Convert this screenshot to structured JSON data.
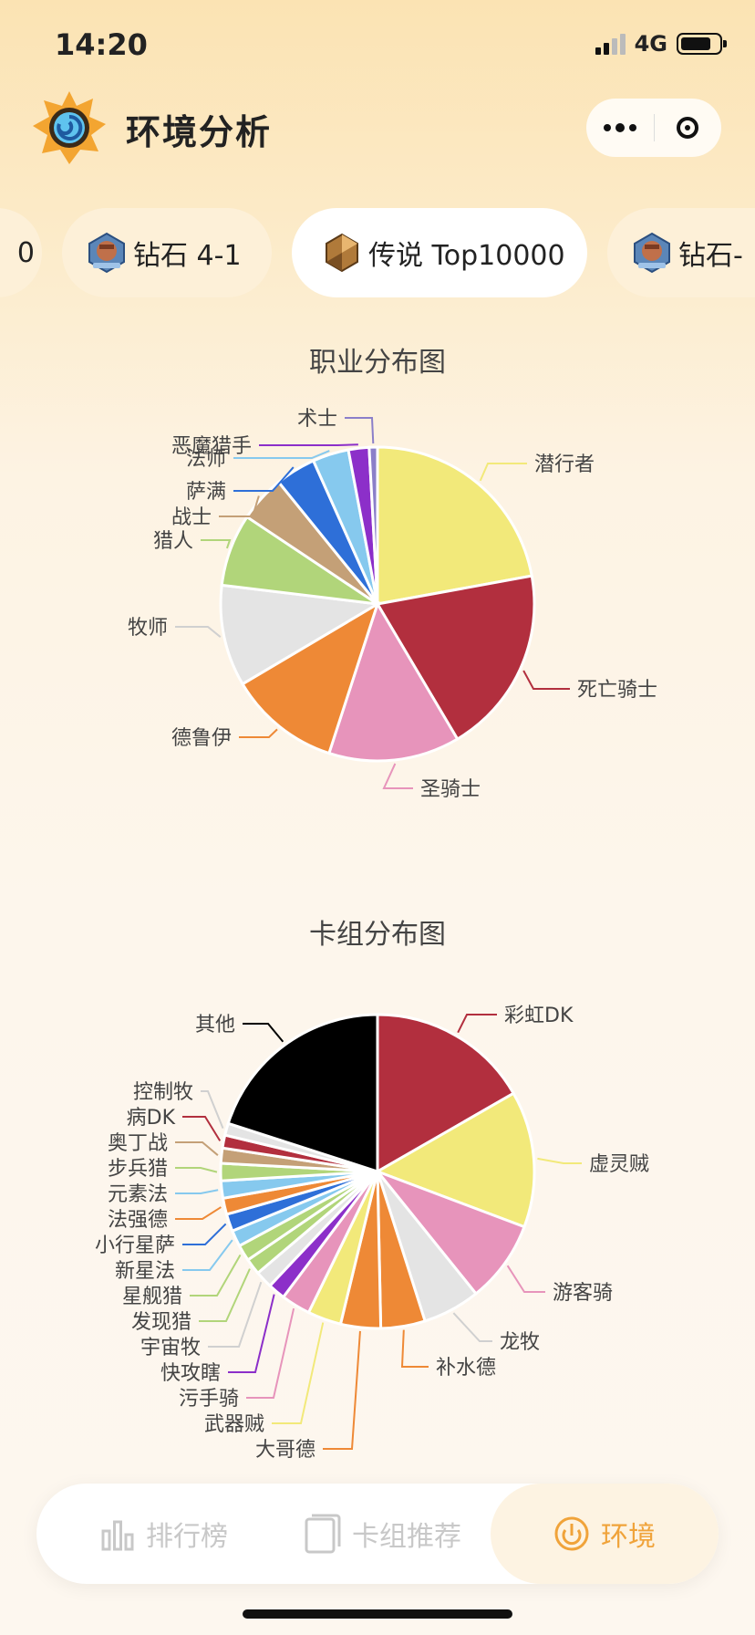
{
  "status_bar": {
    "time": "14:20",
    "network": "4G"
  },
  "header": {
    "title": "环境分析"
  },
  "tabs": [
    {
      "label": "0",
      "badge": "",
      "active": false
    },
    {
      "label": "钻石 4-1",
      "badge": "diamond-badge-icon",
      "active": false
    },
    {
      "label": "传说 Top10000",
      "badge": "legend-badge-icon",
      "active": true
    },
    {
      "label": "钻石-",
      "badge": "diamond-badge-icon",
      "active": false
    }
  ],
  "class_chart": {
    "title": "职业分布图",
    "chart_data": {
      "type": "pie",
      "title": "职业分布图",
      "slices": [
        {
          "name": "潜行者",
          "value": 20.8,
          "color": "#f2e97a"
        },
        {
          "name": "死亡骑士",
          "value": 18.2,
          "color": "#b22f3e"
        },
        {
          "name": "圣骑士",
          "value": 12.7,
          "color": "#e794bb"
        },
        {
          "name": "德鲁伊",
          "value": 10.8,
          "color": "#ee8936"
        },
        {
          "name": "牧师",
          "value": 9.8,
          "color": "#e4e4e4"
        },
        {
          "name": "猎人",
          "value": 7.0,
          "color": "#b1d57a"
        },
        {
          "name": "战士",
          "value": 4.5,
          "color": "#c4a077"
        },
        {
          "name": "萨满",
          "value": 3.9,
          "color": "#2e6fd8"
        },
        {
          "name": "法师",
          "value": 3.5,
          "color": "#86c9ee"
        },
        {
          "name": "恶魔猎手",
          "value": 2.0,
          "color": "#8c2fc9"
        },
        {
          "name": "术士",
          "value": 0.8,
          "color": "#8b7fc9"
        }
      ]
    }
  },
  "deck_chart": {
    "title": "卡组分布图",
    "chart_data": {
      "type": "pie",
      "title": "卡组分布图",
      "slices": [
        {
          "name": "彩虹DK",
          "value": 15.0,
          "color": "#b22f3e"
        },
        {
          "name": "虚灵贼",
          "value": 12.6,
          "color": "#f2e97a"
        },
        {
          "name": "游客骑",
          "value": 7.6,
          "color": "#e794bb"
        },
        {
          "name": "龙牧",
          "value": 5.3,
          "color": "#e4e4e4"
        },
        {
          "name": "补水德",
          "value": 4.1,
          "color": "#ee8936"
        },
        {
          "name": "大哥德",
          "value": 3.7,
          "color": "#ee8936"
        },
        {
          "name": "武器贼",
          "value": 3.1,
          "color": "#f2e97a"
        },
        {
          "name": "污手骑",
          "value": 2.7,
          "color": "#e794bb"
        },
        {
          "name": "快攻瞎",
          "value": 1.6,
          "color": "#8c2fc9"
        },
        {
          "name": "宇宙牧",
          "value": 1.6,
          "color": "#e4e4e4"
        },
        {
          "name": "发现猎",
          "value": 1.5,
          "color": "#b1d57a"
        },
        {
          "name": "星舰猎",
          "value": 1.5,
          "color": "#b1d57a"
        },
        {
          "name": "新星法",
          "value": 1.5,
          "color": "#86c9ee"
        },
        {
          "name": "小行星萨",
          "value": 1.6,
          "color": "#2e6fd8"
        },
        {
          "name": "法强德",
          "value": 1.5,
          "color": "#ee8936"
        },
        {
          "name": "元素法",
          "value": 1.6,
          "color": "#86c9ee"
        },
        {
          "name": "步兵猎",
          "value": 1.6,
          "color": "#b1d57a"
        },
        {
          "name": "奥丁战",
          "value": 1.4,
          "color": "#c4a077"
        },
        {
          "name": "病DK",
          "value": 1.2,
          "color": "#b22f3e"
        },
        {
          "name": "控制牧",
          "value": 1.1,
          "color": "#e4e4e4"
        },
        {
          "name": "其他",
          "value": 18.0,
          "color": "#000000"
        }
      ]
    }
  },
  "navbar": {
    "items": [
      {
        "label": "排行榜",
        "icon": "bar-chart-icon",
        "active": false
      },
      {
        "label": "卡组推荐",
        "icon": "cards-icon",
        "active": false
      },
      {
        "label": "环境",
        "icon": "environment-icon",
        "active": true
      }
    ]
  }
}
